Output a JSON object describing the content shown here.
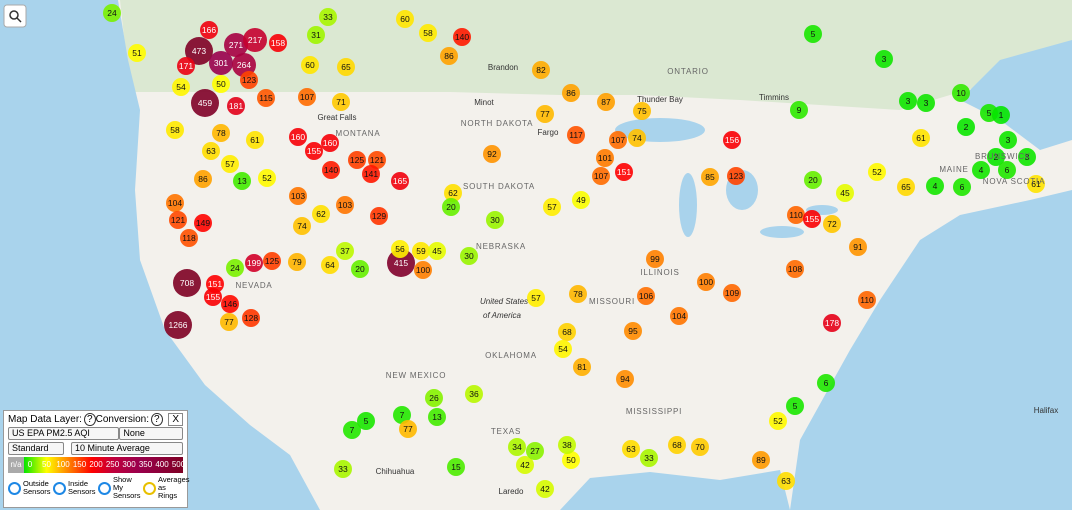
{
  "sensors": [
    24,
    31,
    33,
    60,
    58,
    140,
    86,
    82,
    5,
    3,
    166,
    473,
    271,
    217,
    158,
    301,
    264,
    171,
    51,
    60,
    65,
    123,
    50,
    54,
    459,
    181,
    115,
    107,
    71,
    86,
    87,
    75,
    77,
    117,
    74,
    107,
    156,
    9,
    3,
    3,
    10,
    5,
    1,
    2,
    3,
    61,
    2,
    3,
    4,
    6,
    61,
    160,
    155,
    160,
    125,
    121,
    140,
    141,
    165,
    92,
    101,
    107,
    151,
    78,
    61,
    58,
    63,
    57,
    13,
    52,
    86,
    104,
    103,
    103,
    129,
    62,
    20,
    30,
    57,
    49,
    85,
    123,
    20,
    45,
    52,
    65,
    4,
    6,
    121,
    149,
    118,
    74,
    62,
    110,
    155,
    72,
    91,
    415,
    56,
    59,
    45,
    30,
    125,
    199,
    24,
    79,
    100,
    37,
    64,
    20,
    708,
    151,
    155,
    146,
    1266,
    128,
    77,
    78,
    57,
    106,
    104,
    100,
    109,
    108,
    110,
    178,
    95,
    99,
    68,
    54,
    81,
    94,
    42,
    50,
    38,
    27,
    34,
    63,
    33,
    68,
    70,
    26,
    36,
    13,
    7,
    77,
    5,
    7,
    15,
    33,
    42,
    6,
    5,
    52,
    89,
    63
  ],
  "map_labels": [
    "ONTARIO",
    "Brandon",
    "Thunder Bay",
    "Timmins",
    "Minot",
    "NORTH DAKOTA",
    "Fargo",
    "Great Falls",
    "MONTANA",
    "SOUTH DAKOTA",
    "NEBRASKA",
    "NEVADA",
    "United States",
    "of America",
    "MISSOURI",
    "ILLINOIS",
    "OKLAHOMA",
    "NEW MEXICO",
    "TEXAS",
    "MISSISSIPPI",
    "Chihuahua",
    "Laredo",
    "MAINE",
    "BRUNSWICK",
    "NOVA SCOTIA",
    "Halifax"
  ],
  "panel": {
    "title": "Map Data Layer:",
    "help": "?",
    "conversion": "Conversion:",
    "close": "X",
    "layer": "US EPA PM2.5 AQI",
    "conversion_value": "None",
    "mode": "Standard",
    "average": "10 Minute Average",
    "legend_na": "n/a",
    "legend_ticks": [
      0,
      50,
      100,
      150,
      200,
      250,
      300,
      350,
      400,
      500
    ],
    "checks": [
      "Outside Sensors",
      "Inside Sensors",
      "Show My Sensors",
      "Averages as Rings"
    ]
  }
}
